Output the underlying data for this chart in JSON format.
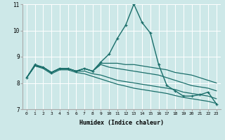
{
  "xlabel": "Humidex (Indice chaleur)",
  "ylabel": "",
  "xlim": [
    -0.5,
    23.5
  ],
  "ylim": [
    7,
    11
  ],
  "yticks": [
    7,
    8,
    9,
    10,
    11
  ],
  "xticks": [
    0,
    1,
    2,
    3,
    4,
    5,
    6,
    7,
    8,
    9,
    10,
    11,
    12,
    13,
    14,
    15,
    16,
    17,
    18,
    19,
    20,
    21,
    22,
    23
  ],
  "bg_color": "#cde8e8",
  "line_color": "#1a6e6a",
  "grid_color": "#ffffff",
  "lines": [
    {
      "x": [
        0,
        1,
        2,
        3,
        4,
        5,
        6,
        7,
        8,
        9,
        10,
        11,
        12,
        13,
        14,
        15,
        16,
        17,
        18,
        19,
        20,
        21,
        22,
        23
      ],
      "y": [
        8.2,
        8.7,
        8.6,
        8.4,
        8.55,
        8.55,
        8.45,
        8.55,
        8.45,
        8.8,
        9.1,
        9.7,
        10.2,
        11.0,
        10.3,
        9.9,
        8.7,
        7.9,
        7.7,
        7.5,
        7.5,
        7.55,
        7.65,
        7.2
      ],
      "marker": true,
      "linewidth": 1.0
    },
    {
      "x": [
        0,
        1,
        2,
        3,
        4,
        5,
        6,
        7,
        8,
        9,
        10,
        11,
        12,
        13,
        14,
        15,
        16,
        17,
        18,
        19,
        20,
        21,
        22,
        23
      ],
      "y": [
        8.2,
        8.65,
        8.6,
        8.4,
        8.55,
        8.55,
        8.45,
        8.55,
        8.45,
        8.75,
        8.75,
        8.75,
        8.7,
        8.7,
        8.65,
        8.6,
        8.55,
        8.5,
        8.4,
        8.35,
        8.3,
        8.2,
        8.1,
        8.0
      ],
      "marker": false,
      "linewidth": 0.9
    },
    {
      "x": [
        0,
        1,
        2,
        3,
        4,
        5,
        6,
        7,
        8,
        9,
        10,
        11,
        12,
        13,
        14,
        15,
        16,
        17,
        18,
        19,
        20,
        21,
        22,
        23
      ],
      "y": [
        8.2,
        8.65,
        8.6,
        8.4,
        8.55,
        8.55,
        8.45,
        8.55,
        8.45,
        8.7,
        8.6,
        8.55,
        8.5,
        8.45,
        8.4,
        8.35,
        8.3,
        8.2,
        8.1,
        8.0,
        7.9,
        7.85,
        7.8,
        7.7
      ],
      "marker": false,
      "linewidth": 0.9
    },
    {
      "x": [
        0,
        1,
        2,
        3,
        4,
        5,
        6,
        7,
        8,
        9,
        10,
        11,
        12,
        13,
        14,
        15,
        16,
        17,
        18,
        19,
        20,
        21,
        22,
        23
      ],
      "y": [
        8.2,
        8.65,
        8.6,
        8.4,
        8.55,
        8.55,
        8.45,
        8.45,
        8.35,
        8.3,
        8.2,
        8.1,
        8.05,
        8.0,
        7.95,
        7.9,
        7.85,
        7.8,
        7.75,
        7.65,
        7.6,
        7.55,
        7.5,
        7.4
      ],
      "marker": false,
      "linewidth": 0.9
    },
    {
      "x": [
        0,
        1,
        2,
        3,
        4,
        5,
        6,
        7,
        8,
        9,
        10,
        11,
        12,
        13,
        14,
        15,
        16,
        17,
        18,
        19,
        20,
        21,
        22,
        23
      ],
      "y": [
        8.2,
        8.65,
        8.55,
        8.35,
        8.5,
        8.5,
        8.4,
        8.35,
        8.25,
        8.15,
        8.05,
        7.95,
        7.88,
        7.8,
        7.75,
        7.7,
        7.65,
        7.6,
        7.52,
        7.45,
        7.4,
        7.35,
        7.3,
        7.22
      ],
      "marker": false,
      "linewidth": 0.9
    }
  ]
}
